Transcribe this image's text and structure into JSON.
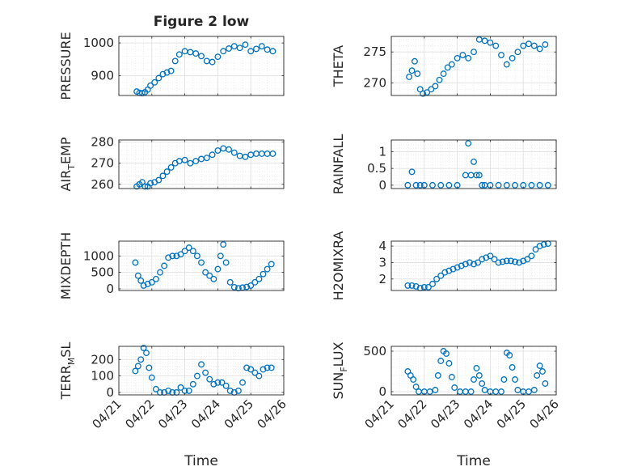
{
  "figure": {
    "title": "Figure 2 low",
    "xlabel": "Time"
  },
  "colors": {
    "marker": "#0072BD",
    "axis": "#262626",
    "grid": "#dfdfdf"
  },
  "chart_data": [
    {
      "type": "scatter",
      "ylabel": "PRESSURE",
      "ylim": [
        840,
        1020
      ],
      "yticks": [
        900,
        1000
      ],
      "grid": true,
      "x": [
        "04/21 13:00",
        "04/21 15:00",
        "04/21 17:00",
        "04/21 19:00",
        "04/21 21:00",
        "04/21 23:00",
        "04/22 02:00",
        "04/22 05:00",
        "04/22 08:00",
        "04/22 11:00",
        "04/22 14:00",
        "04/22 17:00",
        "04/22 20:00",
        "04/23 00:00",
        "04/23 04:00",
        "04/23 08:00",
        "04/23 12:00",
        "04/23 16:00",
        "04/23 20:00",
        "04/24 00:00",
        "04/24 04:00",
        "04/24 08:00",
        "04/24 12:00",
        "04/24 16:00",
        "04/24 20:00",
        "04/25 00:00",
        "04/25 04:00",
        "04/25 08:00",
        "04/25 12:00",
        "04/25 16:00"
      ],
      "y": [
        852,
        848,
        847,
        850,
        858,
        870,
        880,
        893,
        905,
        910,
        915,
        945,
        965,
        975,
        972,
        968,
        960,
        945,
        942,
        958,
        975,
        983,
        990,
        985,
        995,
        975,
        982,
        990,
        980,
        975
      ]
    },
    {
      "type": "scatter",
      "ylabel": "THETA",
      "ylim": [
        268,
        277.5
      ],
      "yticks": [
        270,
        275
      ],
      "grid": true,
      "x": [
        "04/21 13:00",
        "04/21 15:00",
        "04/21 17:00",
        "04/21 19:00",
        "04/21 21:00",
        "04/21 23:00",
        "04/22 02:00",
        "04/22 05:00",
        "04/22 08:00",
        "04/22 11:00",
        "04/22 14:00",
        "04/22 17:00",
        "04/22 20:00",
        "04/23 00:00",
        "04/23 04:00",
        "04/23 08:00",
        "04/23 12:00",
        "04/23 16:00",
        "04/23 20:00",
        "04/24 00:00",
        "04/24 04:00",
        "04/24 08:00",
        "04/24 12:00",
        "04/24 16:00",
        "04/24 20:00",
        "04/25 00:00",
        "04/25 04:00",
        "04/25 08:00",
        "04/25 12:00",
        "04/25 16:00"
      ],
      "y": [
        271,
        272,
        273.5,
        271.5,
        269,
        268.3,
        268.5,
        269,
        269.5,
        270.5,
        271.5,
        272.5,
        273,
        274,
        274.5,
        274,
        275,
        277,
        276.8,
        276.5,
        276,
        274.5,
        273,
        274,
        275,
        276,
        276.3,
        276,
        275.5,
        276.2
      ]
    },
    {
      "type": "scatter",
      "ylabel": "AIR_TEMP",
      "ylim": [
        258,
        281
      ],
      "yticks": [
        260,
        270,
        280
      ],
      "grid": true,
      "x": [
        "04/21 13:00",
        "04/21 15:00",
        "04/21 17:00",
        "04/21 19:00",
        "04/21 21:00",
        "04/21 23:00",
        "04/22 02:00",
        "04/22 05:00",
        "04/22 08:00",
        "04/22 11:00",
        "04/22 14:00",
        "04/22 17:00",
        "04/22 20:00",
        "04/23 00:00",
        "04/23 04:00",
        "04/23 08:00",
        "04/23 12:00",
        "04/23 16:00",
        "04/23 20:00",
        "04/24 00:00",
        "04/24 04:00",
        "04/24 08:00",
        "04/24 12:00",
        "04/24 16:00",
        "04/24 20:00",
        "04/25 00:00",
        "04/25 04:00",
        "04/25 08:00",
        "04/25 12:00",
        "04/25 16:00"
      ],
      "y": [
        259,
        260,
        261,
        259,
        259,
        260.5,
        261,
        262,
        264,
        266,
        268,
        270,
        271,
        271.5,
        270,
        271,
        272,
        272.5,
        274,
        276,
        277,
        276.5,
        275,
        273.5,
        273,
        274,
        274.5,
        274.5,
        274.5,
        274.5
      ]
    },
    {
      "type": "scatter",
      "ylabel": "RAINFALL",
      "ylim": [
        -0.1,
        1.35
      ],
      "yticks": [
        0,
        0.5,
        1
      ],
      "grid": true,
      "x": [
        "04/21 12:00",
        "04/21 15:00",
        "04/21 18:00",
        "04/21 21:00",
        "04/22 00:00",
        "04/22 06:00",
        "04/22 12:00",
        "04/22 18:00",
        "04/23 00:00",
        "04/23 06:00",
        "04/23 08:00",
        "04/23 10:00",
        "04/23 12:00",
        "04/23 14:00",
        "04/23 16:00",
        "04/23 18:00",
        "04/23 20:00",
        "04/24 00:00",
        "04/24 06:00",
        "04/24 12:00",
        "04/24 18:00",
        "04/25 00:00",
        "04/25 06:00",
        "04/25 12:00",
        "04/25 18:00"
      ],
      "y": [
        0,
        0.4,
        0,
        0,
        0,
        0,
        0,
        0,
        0,
        0.3,
        1.25,
        0.3,
        0.7,
        0.3,
        0.3,
        0,
        0,
        0,
        0,
        0,
        0,
        0,
        0,
        0,
        0
      ]
    },
    {
      "type": "scatter",
      "ylabel": "MIXDEPTH",
      "ylim": [
        -50,
        1450
      ],
      "yticks": [
        0,
        500,
        1000
      ],
      "grid": true,
      "x": [
        "04/21 12:00",
        "04/21 14:00",
        "04/21 16:00",
        "04/21 18:00",
        "04/21 21:00",
        "04/22 00:00",
        "04/22 03:00",
        "04/22 06:00",
        "04/22 09:00",
        "04/22 12:00",
        "04/22 15:00",
        "04/22 18:00",
        "04/22 21:00",
        "04/23 00:00",
        "04/23 03:00",
        "04/23 06:00",
        "04/23 09:00",
        "04/23 12:00",
        "04/23 15:00",
        "04/23 18:00",
        "04/23 21:00",
        "04/24 00:00",
        "04/24 02:00",
        "04/24 04:00",
        "04/24 06:00",
        "04/24 09:00",
        "04/24 12:00",
        "04/24 15:00",
        "04/24 18:00",
        "04/24 21:00",
        "04/25 00:00",
        "04/25 03:00",
        "04/25 06:00",
        "04/25 09:00",
        "04/25 12:00",
        "04/25 15:00"
      ],
      "y": [
        800,
        400,
        250,
        100,
        150,
        200,
        300,
        500,
        700,
        950,
        1000,
        1000,
        1050,
        1150,
        1250,
        1150,
        1000,
        800,
        500,
        400,
        300,
        600,
        1000,
        1350,
        800,
        200,
        50,
        20,
        40,
        60,
        100,
        200,
        300,
        450,
        600,
        750
      ]
    },
    {
      "type": "scatter",
      "ylabel": "H2OMIXRA",
      "ylim": [
        1.3,
        4.3
      ],
      "yticks": [
        2,
        3,
        4
      ],
      "grid": true,
      "x": [
        "04/21 12:00",
        "04/21 15:00",
        "04/21 18:00",
        "04/21 21:00",
        "04/22 00:00",
        "04/22 03:00",
        "04/22 06:00",
        "04/22 09:00",
        "04/22 12:00",
        "04/22 15:00",
        "04/22 18:00",
        "04/22 21:00",
        "04/23 00:00",
        "04/23 03:00",
        "04/23 06:00",
        "04/23 09:00",
        "04/23 12:00",
        "04/23 15:00",
        "04/23 18:00",
        "04/23 21:00",
        "04/24 00:00",
        "04/24 03:00",
        "04/24 06:00",
        "04/24 09:00",
        "04/24 12:00",
        "04/24 15:00",
        "04/24 18:00",
        "04/24 21:00",
        "04/25 00:00",
        "04/25 03:00",
        "04/25 06:00",
        "04/25 09:00",
        "04/25 12:00",
        "04/25 15:00",
        "04/25 18:00"
      ],
      "y": [
        1.6,
        1.6,
        1.55,
        1.45,
        1.5,
        1.5,
        1.7,
        2.0,
        2.2,
        2.4,
        2.5,
        2.6,
        2.7,
        2.8,
        2.9,
        3.0,
        2.9,
        3.0,
        3.2,
        3.3,
        3.4,
        3.2,
        3.0,
        3.05,
        3.1,
        3.1,
        3.05,
        3.0,
        3.1,
        3.2,
        3.4,
        3.8,
        4.0,
        4.1,
        4.15
      ]
    },
    {
      "type": "scatter",
      "ylabel": "TERR_MSL",
      "ylim": [
        -15,
        280
      ],
      "yticks": [
        0,
        100,
        200
      ],
      "grid": true,
      "x": [
        "04/21 12:00",
        "04/21 14:00",
        "04/21 16:00",
        "04/21 18:00",
        "04/21 20:00",
        "04/21 22:00",
        "04/22 00:00",
        "04/22 03:00",
        "04/22 06:00",
        "04/22 09:00",
        "04/22 12:00",
        "04/22 15:00",
        "04/22 18:00",
        "04/22 21:00",
        "04/23 00:00",
        "04/23 03:00",
        "04/23 06:00",
        "04/23 09:00",
        "04/23 12:00",
        "04/23 15:00",
        "04/23 18:00",
        "04/23 21:00",
        "04/24 00:00",
        "04/24 03:00",
        "04/24 06:00",
        "04/24 09:00",
        "04/24 12:00",
        "04/24 15:00",
        "04/24 18:00",
        "04/24 21:00",
        "04/25 00:00",
        "04/25 03:00",
        "04/25 06:00",
        "04/25 09:00",
        "04/25 12:00",
        "04/25 15:00"
      ],
      "y": [
        130,
        160,
        200,
        270,
        240,
        150,
        90,
        20,
        0,
        0,
        10,
        0,
        0,
        30,
        10,
        10,
        50,
        100,
        170,
        120,
        80,
        50,
        60,
        60,
        40,
        10,
        0,
        10,
        60,
        150,
        140,
        120,
        100,
        140,
        150,
        150
      ]
    },
    {
      "type": "scatter",
      "ylabel": "SUN_FLUX",
      "ylim": [
        -40,
        560
      ],
      "yticks": [
        0,
        500
      ],
      "grid": true,
      "x": [
        "04/21 12:00",
        "04/21 14:00",
        "04/21 16:00",
        "04/21 18:00",
        "04/21 20:00",
        "04/22 00:00",
        "04/22 04:00",
        "04/22 08:00",
        "04/22 10:00",
        "04/22 12:00",
        "04/22 14:00",
        "04/22 16:00",
        "04/22 18:00",
        "04/22 20:00",
        "04/22 22:00",
        "04/23 02:00",
        "04/23 06:00",
        "04/23 10:00",
        "04/23 12:00",
        "04/23 14:00",
        "04/23 16:00",
        "04/23 18:00",
        "04/23 20:00",
        "04/24 00:00",
        "04/24 04:00",
        "04/24 08:00",
        "04/24 10:00",
        "04/24 12:00",
        "04/24 14:00",
        "04/24 16:00",
        "04/24 18:00",
        "04/24 20:00",
        "04/25 00:00",
        "04/25 04:00",
        "04/25 08:00",
        "04/25 10:00",
        "04/25 12:00",
        "04/25 14:00",
        "04/25 16:00"
      ],
      "y": [
        250,
        200,
        150,
        60,
        0,
        0,
        0,
        20,
        200,
        380,
        500,
        470,
        350,
        180,
        50,
        0,
        0,
        0,
        150,
        290,
        200,
        100,
        20,
        0,
        0,
        0,
        150,
        480,
        450,
        300,
        150,
        20,
        0,
        0,
        20,
        200,
        320,
        250,
        100
      ]
    }
  ],
  "shared_x": {
    "range": [
      "04/21 00:00",
      "04/26 00:00"
    ],
    "ticks": [
      "04/21",
      "04/22",
      "04/23",
      "04/24",
      "04/25",
      "04/26"
    ]
  }
}
